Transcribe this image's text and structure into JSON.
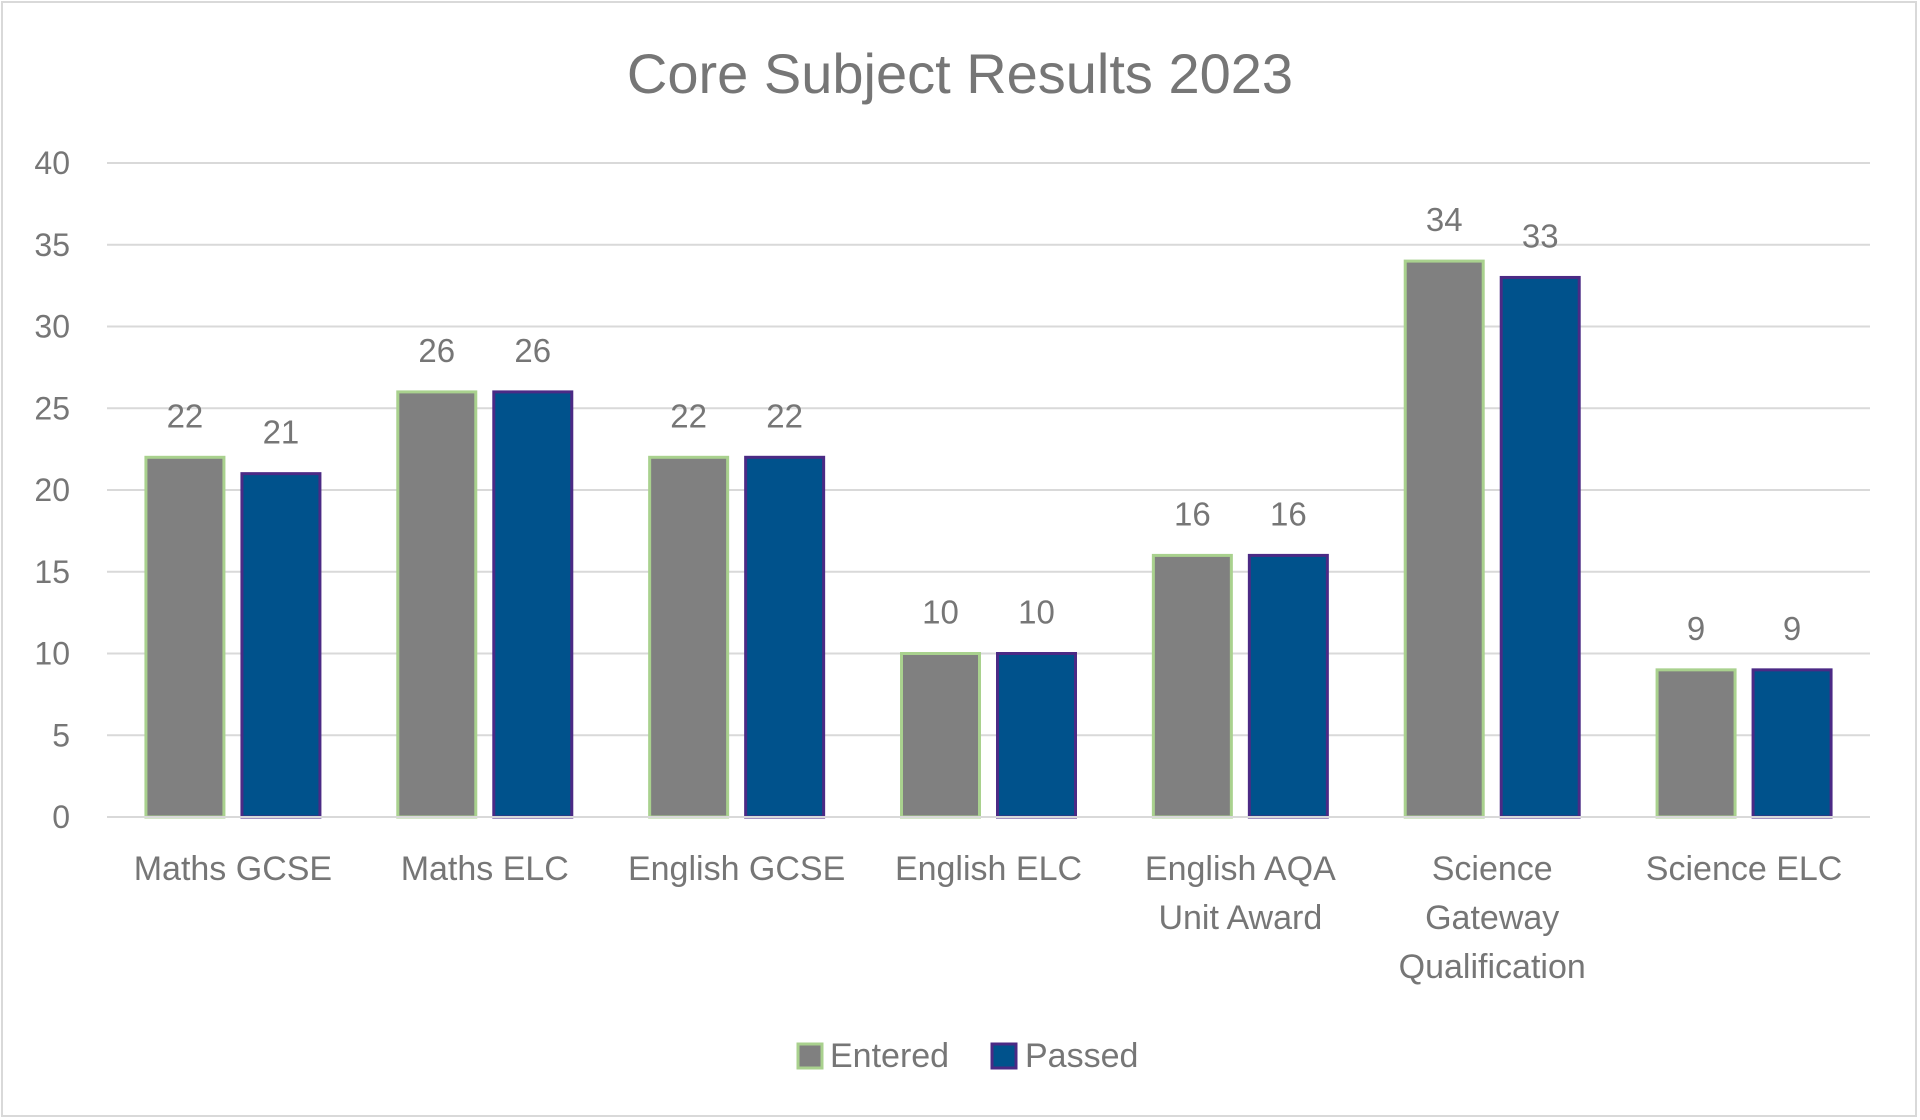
{
  "chart_data": {
    "type": "bar",
    "title": "Core Subject Results 2023",
    "xlabel": "",
    "ylabel": "",
    "categories": [
      [
        "Maths GCSE"
      ],
      [
        "Maths ELC"
      ],
      [
        "English GCSE"
      ],
      [
        "English ELC"
      ],
      [
        "English AQA",
        "Unit Award"
      ],
      [
        "Science",
        "Gateway",
        "Qualification"
      ],
      [
        "Science ELC"
      ]
    ],
    "series": [
      {
        "name": "Entered",
        "values": [
          22,
          26,
          22,
          10,
          16,
          34,
          9
        ],
        "color": "#808080",
        "border_color": "#a9d18e"
      },
      {
        "name": "Passed",
        "values": [
          21,
          26,
          22,
          10,
          16,
          33,
          9
        ],
        "color": "#00528c",
        "border_color": "#4b2a85"
      }
    ],
    "ylim": [
      0,
      40
    ],
    "yticks": [
      0,
      5,
      10,
      15,
      20,
      25,
      30,
      35,
      40
    ],
    "grid": true,
    "gridline_color": "#d9d9d9",
    "data_labels": true,
    "legend_position": "bottom"
  }
}
